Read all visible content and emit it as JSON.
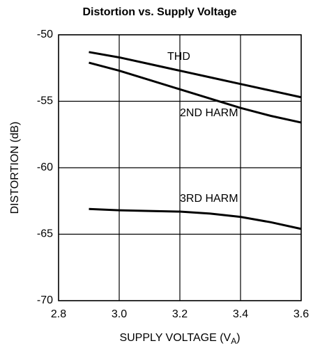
{
  "chart_data": {
    "type": "line",
    "title": "Distortion vs. Supply Voltage",
    "x_label": {
      "text": "SUPPLY VOLTAGE (V",
      "subscript": "A",
      "suffix": ")"
    },
    "y_label": "DISTORTION (dB)",
    "x": [
      2.9,
      3.0,
      3.1,
      3.2,
      3.3,
      3.4,
      3.5,
      3.6
    ],
    "series": [
      {
        "name": "THD",
        "color": "#000000",
        "values": [
          -51.3,
          -51.7,
          -52.2,
          -52.7,
          -53.2,
          -53.7,
          -54.2,
          -54.7
        ]
      },
      {
        "name": "2ND HARM",
        "color": "#000000",
        "values": [
          -52.1,
          -52.7,
          -53.4,
          -54.1,
          -54.8,
          -55.5,
          -56.1,
          -56.6
        ]
      },
      {
        "name": "3RD HARM",
        "color": "#000000",
        "values": [
          -63.1,
          -63.2,
          -63.25,
          -63.3,
          -63.45,
          -63.7,
          -64.1,
          -64.6
        ]
      }
    ],
    "xlim": [
      2.8,
      3.6
    ],
    "xticks": [
      2.8,
      {
        "value": 3,
        "label": "3.0"
      },
      3.2,
      3.4,
      3.6
    ],
    "ylim": [
      -70,
      -50
    ],
    "yticks": [
      -50,
      -55,
      -60,
      -65,
      -70
    ],
    "grid": true
  }
}
